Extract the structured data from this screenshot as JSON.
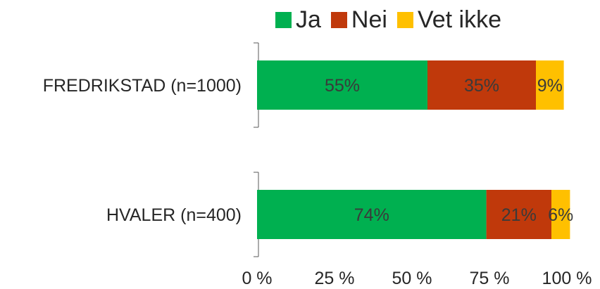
{
  "chart_data": {
    "type": "bar",
    "orientation": "horizontal",
    "stacked": true,
    "categories": [
      "FREDRIKSTAD (n=1000)",
      "HVALER (n=400)"
    ],
    "series": [
      {
        "name": "Ja",
        "color": "#00b050",
        "values": [
          55,
          74
        ],
        "labels": [
          "55%",
          "74%"
        ]
      },
      {
        "name": "Nei",
        "color": "#c0390b",
        "values": [
          35,
          21
        ],
        "labels": [
          "35%",
          "21%"
        ]
      },
      {
        "name": "Vet ikke",
        "color": "#ffc000",
        "values": [
          9,
          6
        ],
        "labels": [
          "9%",
          "6%"
        ]
      }
    ],
    "x_ticks": [
      "0 %",
      "25 %",
      "50 %",
      "75 %",
      "100 %"
    ],
    "xlim": [
      0,
      100
    ],
    "legend_position": "top",
    "grid": false
  }
}
